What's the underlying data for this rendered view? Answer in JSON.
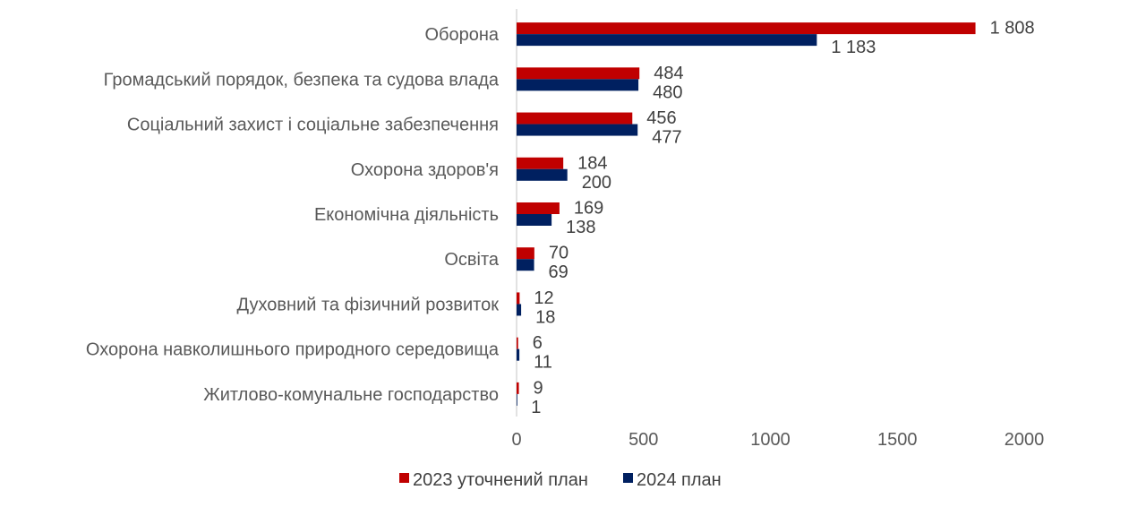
{
  "chart_data": {
    "type": "bar",
    "orientation": "horizontal",
    "categories": [
      "Оборона",
      "Громадський порядок, безпека та судова влада",
      "Соціальний захист і соціальне забезпечення",
      "Охорона здоров'я",
      "Економічна діяльність",
      "Освіта",
      "Духовний та фізичний розвиток",
      "Охорона навколишнього природного середовища",
      "Житлово-комунальне господарство"
    ],
    "series": [
      {
        "name": "2023 уточнений план",
        "color": "#C00000",
        "values": [
          1808,
          484,
          456,
          184,
          169,
          70,
          12,
          6,
          9
        ],
        "labels": [
          "1 808",
          "484",
          "456",
          "184",
          "169",
          "70",
          "12",
          "6",
          "9"
        ]
      },
      {
        "name": "2024 план",
        "color": "#002060",
        "values": [
          1183,
          480,
          477,
          200,
          138,
          69,
          18,
          11,
          1
        ],
        "labels": [
          "1 183",
          "480",
          "477",
          "200",
          "138",
          "69",
          "18",
          "11",
          "1"
        ]
      }
    ],
    "x_ticks": [
      "0",
      "500",
      "1000",
      "1500",
      "2000"
    ],
    "xlim": [
      0,
      2000
    ],
    "grid": false,
    "legend_position": "bottom"
  }
}
